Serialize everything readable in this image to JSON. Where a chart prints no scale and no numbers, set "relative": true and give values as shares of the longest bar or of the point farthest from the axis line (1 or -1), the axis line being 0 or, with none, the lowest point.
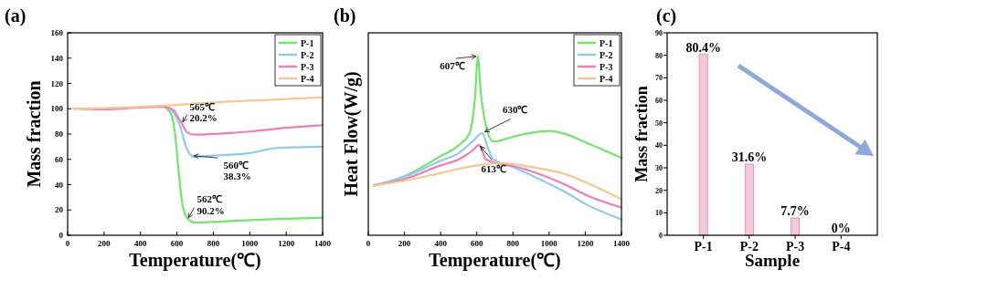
{
  "chart_data": [
    {
      "type": "line",
      "title": "(a)",
      "xlabel": "Temperature(℃)",
      "ylabel": "Mass fraction",
      "xlim": [
        0,
        1400
      ],
      "xticks": [
        0,
        200,
        400,
        600,
        800,
        1000,
        1200,
        1400
      ],
      "ylim": [
        0,
        160
      ],
      "yticks": [
        0,
        20,
        40,
        60,
        80,
        100,
        120,
        140,
        160
      ],
      "legend": "top right",
      "grid": false,
      "series": [
        {
          "name": "P-1",
          "color": "#6fe86a",
          "x": [
            530,
            570,
            590,
            610,
            630,
            660,
            700,
            800,
            1000,
            1200,
            1400
          ],
          "values": [
            101.5,
            95,
            80,
            50,
            25,
            13,
            10,
            10.5,
            12,
            13,
            14
          ]
        },
        {
          "name": "P-2",
          "color": "#8ccbf7",
          "x": [
            530,
            580,
            620,
            650,
            680,
            700,
            800,
            1000,
            1150,
            1400
          ],
          "values": [
            101.5,
            97,
            85,
            70,
            63,
            62,
            63,
            65,
            69,
            70
          ]
        },
        {
          "name": "P-3",
          "color": "#f77ab5",
          "x": [
            30,
            200,
            400,
            530,
            580,
            620,
            660,
            700,
            800,
            1000,
            1200,
            1400
          ],
          "values": [
            100,
            99.5,
            101,
            101.5,
            99,
            90,
            81,
            79.5,
            80,
            82,
            85,
            87
          ]
        },
        {
          "name": "P-4",
          "color": "#f3c98f",
          "x": [
            30,
            300,
            600,
            800,
            1100,
            1400
          ],
          "values": [
            100,
            101,
            103,
            105,
            107,
            109
          ]
        }
      ],
      "annotations": [
        {
          "text": "565℃\n20.2%",
          "x": 630,
          "y": 89
        },
        {
          "text": "560℃\n38.3%",
          "x": 680,
          "y": 63
        },
        {
          "text": "562℃\n90.2%",
          "x": 660,
          "y": 13
        }
      ]
    },
    {
      "type": "line",
      "title": "(b)",
      "xlabel": "Temperature(℃)",
      "ylabel": "Heat Flow(W/g)",
      "relative": true,
      "xlim": [
        0,
        1400
      ],
      "xticks": [
        0,
        200,
        400,
        600,
        800,
        1000,
        1200,
        1400
      ],
      "legend": "top right",
      "grid": false,
      "series": [
        {
          "name": "P-1",
          "color": "#6fe86a",
          "x": [
            30,
            200,
            400,
            500,
            560,
            590,
            607,
            620,
            640,
            690,
            720,
            800,
            1000,
            1100,
            1200,
            1400
          ],
          "values": [
            0.278,
            0.33,
            0.442,
            0.502,
            0.57,
            0.768,
            1,
            0.82,
            0.665,
            0.524,
            0.527,
            0.55,
            0.582,
            0.562,
            0.519,
            0.433
          ]
        },
        {
          "name": "P-2",
          "color": "#8ccbf7",
          "x": [
            30,
            200,
            400,
            500,
            580,
            630,
            660,
            690,
            800,
            1000,
            1100,
            1200,
            1400
          ],
          "values": [
            0.278,
            0.325,
            0.416,
            0.459,
            0.527,
            0.57,
            0.493,
            0.424,
            0.381,
            0.287,
            0.235,
            0.175,
            0.089
          ]
        },
        {
          "name": "P-3",
          "color": "#f77ab5",
          "x": [
            30,
            200,
            400,
            500,
            580,
            613,
            650,
            690,
            800,
            1000,
            1100,
            1200,
            1400
          ],
          "values": [
            0.278,
            0.313,
            0.39,
            0.424,
            0.476,
            0.505,
            0.424,
            0.407,
            0.387,
            0.321,
            0.278,
            0.227,
            0.155
          ]
        },
        {
          "name": "P-4",
          "color": "#f3c98f",
          "x": [
            30,
            200,
            400,
            600,
            750,
            900,
            1100,
            1200,
            1400
          ],
          "values": [
            0.278,
            0.304,
            0.347,
            0.39,
            0.402,
            0.381,
            0.338,
            0.296,
            0.201
          ]
        }
      ],
      "annotations": [
        {
          "text": "607℃",
          "x": 607,
          "y": 1
        },
        {
          "text": "630℃",
          "x": 630,
          "y": 0.57
        },
        {
          "text": "613℃",
          "x": 613,
          "y": 0.505
        }
      ]
    },
    {
      "type": "bar",
      "title": "(c)",
      "xlabel": "Sample",
      "ylabel": "Mass fraction",
      "categories": [
        "P-1",
        "P-2",
        "P-3",
        "P-4"
      ],
      "values": [
        80.4,
        31.6,
        7.7,
        0
      ],
      "value_labels": [
        "80.4%",
        "31.6%",
        "7.7%",
        "0%"
      ],
      "color": "#f6c8dc",
      "ylim": [
        0,
        90
      ],
      "yticks": [
        0,
        10,
        20,
        30,
        40,
        50,
        60,
        70,
        80,
        90
      ],
      "grid": false
    }
  ]
}
